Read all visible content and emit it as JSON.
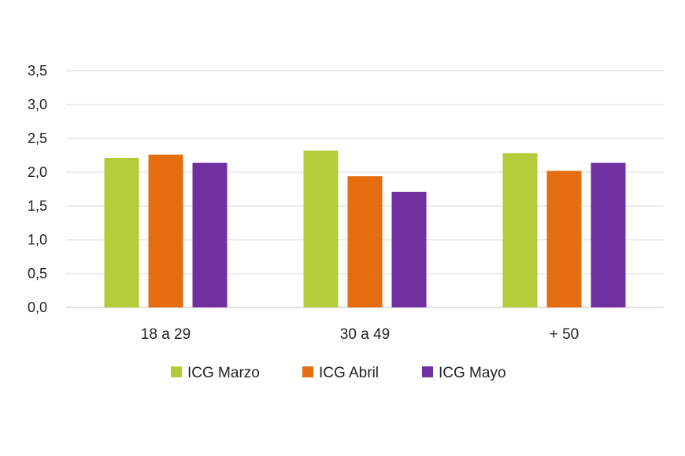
{
  "chart_data": {
    "type": "bar",
    "categories": [
      "18 a 29",
      "30 a 49",
      "+ 50"
    ],
    "series": [
      {
        "name": "ICG Marzo",
        "color": "#b5cc3a",
        "values": [
          2.21,
          2.32,
          2.28
        ]
      },
      {
        "name": "ICG Abril",
        "color": "#e46d10",
        "values": [
          2.26,
          1.94,
          2.02
        ]
      },
      {
        "name": "ICG Mayo",
        "color": "#7030a0",
        "values": [
          2.14,
          1.71,
          2.14
        ]
      }
    ],
    "yticks": [
      "0,0",
      "0,5",
      "1,0",
      "1,5",
      "2,0",
      "2,5",
      "3,0",
      "3,5"
    ],
    "ylim": [
      0,
      3.5
    ],
    "grid": true,
    "legend_position": "bottom"
  }
}
